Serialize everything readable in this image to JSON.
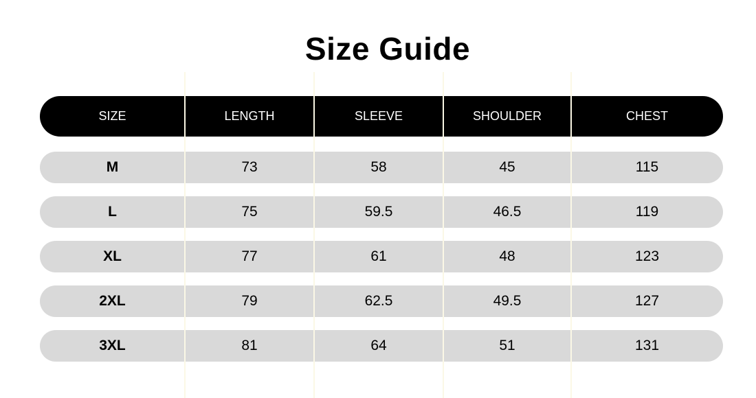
{
  "title": "Size Guide",
  "columns": [
    "SIZE",
    "LENGTH",
    "SLEEVE",
    "SHOULDER",
    "CHEST"
  ],
  "rows": [
    [
      "M",
      "73",
      "58",
      "45",
      "115"
    ],
    [
      "L",
      "75",
      "59.5",
      "46.5",
      "119"
    ],
    [
      "XL",
      "77",
      "61",
      "48",
      "123"
    ],
    [
      "2XL",
      "79",
      "62.5",
      "49.5",
      "127"
    ],
    [
      "3XL",
      "81",
      "64",
      "51",
      "131"
    ]
  ],
  "colors": {
    "header_bg": "#000000",
    "row_bg": "#d9d9d9"
  }
}
